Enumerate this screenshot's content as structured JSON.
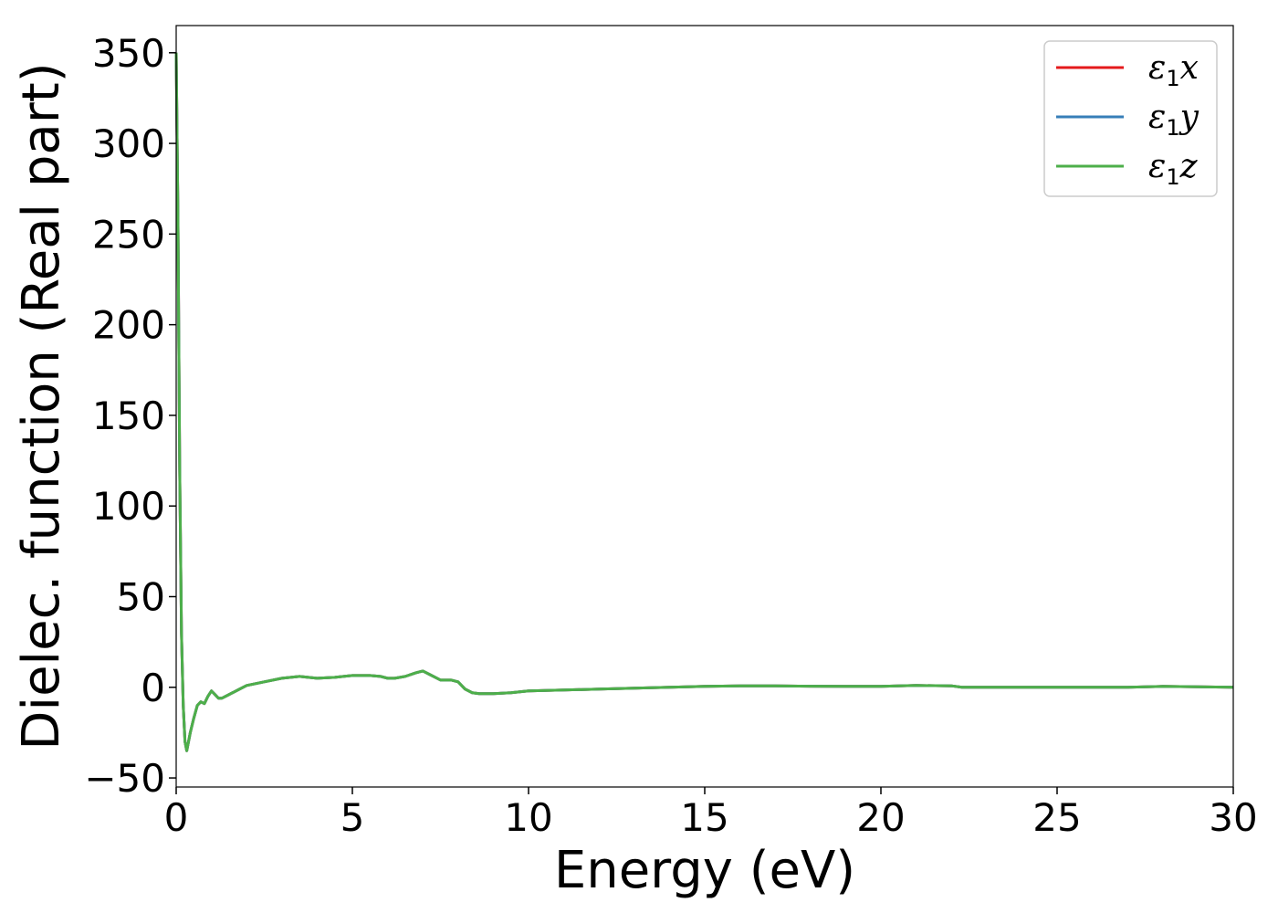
{
  "chart_data": {
    "type": "line",
    "xlabel": "Energy (eV)",
    "ylabel": "Dielec. function (Real part)",
    "xlim": [
      0,
      30
    ],
    "ylim": [
      -55,
      365
    ],
    "xticks": [
      0,
      5,
      10,
      15,
      20,
      25,
      30
    ],
    "yticks": [
      -50,
      0,
      50,
      100,
      150,
      200,
      250,
      300,
      350
    ],
    "xtick_labels": [
      "0",
      "5",
      "10",
      "15",
      "20",
      "25",
      "30"
    ],
    "ytick_labels": [
      "−50",
      "0",
      "50",
      "100",
      "150",
      "200",
      "250",
      "300",
      "350"
    ],
    "grid": false,
    "legend_position": "top-right",
    "series": [
      {
        "name": "ε₁x",
        "legend_base": "ε",
        "legend_sub": "1",
        "legend_var": "x",
        "color": "#e41a1c",
        "x": [
          0,
          0.05,
          0.1,
          0.15,
          0.2,
          0.25,
          0.3,
          0.4,
          0.5,
          0.6,
          0.7,
          0.8,
          0.9,
          1.0,
          1.1,
          1.2,
          1.3,
          1.5,
          1.8,
          2.0,
          2.5,
          3.0,
          3.5,
          4.0,
          4.5,
          5.0,
          5.5,
          5.8,
          6.0,
          6.2,
          6.5,
          6.8,
          7.0,
          7.2,
          7.5,
          7.8,
          8.0,
          8.2,
          8.4,
          8.6,
          9.0,
          9.5,
          10.0,
          11.0,
          12.0,
          13.0,
          14.0,
          15.0,
          16.0,
          17.0,
          18.0,
          19.0,
          20.0,
          21.0,
          22.0,
          22.3,
          25.0,
          27.0,
          28.0,
          30.0
        ],
        "y": [
          350,
          260,
          120,
          30,
          -10,
          -30,
          -35,
          -25,
          -17,
          -10,
          -8,
          -9,
          -5,
          -2,
          -4,
          -6,
          -6,
          -4,
          -1,
          1,
          3,
          5,
          6,
          5,
          5.5,
          6.5,
          6.5,
          6,
          5,
          5,
          6,
          8,
          9,
          7,
          4,
          4,
          3,
          -1,
          -3,
          -3.5,
          -3.5,
          -3,
          -2,
          -1.5,
          -1,
          -0.5,
          0,
          0.5,
          0.8,
          0.8,
          0.6,
          0.5,
          0.5,
          1,
          0.8,
          0,
          0,
          0,
          0.5,
          0
        ]
      },
      {
        "name": "ε₁y",
        "legend_base": "ε",
        "legend_sub": "1",
        "legend_var": "y",
        "color": "#377eb8",
        "x": [
          0,
          0.05,
          0.1,
          0.15,
          0.2,
          0.25,
          0.3,
          0.4,
          0.5,
          0.6,
          0.7,
          0.8,
          0.9,
          1.0,
          1.1,
          1.2,
          1.3,
          1.5,
          1.8,
          2.0,
          2.5,
          3.0,
          3.5,
          4.0,
          4.5,
          5.0,
          5.5,
          5.8,
          6.0,
          6.2,
          6.5,
          6.8,
          7.0,
          7.2,
          7.5,
          7.8,
          8.0,
          8.2,
          8.4,
          8.6,
          9.0,
          9.5,
          10.0,
          11.0,
          12.0,
          13.0,
          14.0,
          15.0,
          16.0,
          17.0,
          18.0,
          19.0,
          20.0,
          21.0,
          22.0,
          22.3,
          25.0,
          27.0,
          28.0,
          30.0
        ],
        "y": [
          350,
          260,
          120,
          30,
          -10,
          -30,
          -35,
          -25,
          -17,
          -10,
          -8,
          -9,
          -5,
          -2,
          -4,
          -6,
          -6,
          -4,
          -1,
          1,
          3,
          5,
          6,
          5,
          5.5,
          6.5,
          6.5,
          6,
          5,
          5,
          6,
          8,
          9,
          7,
          4,
          4,
          3,
          -1,
          -3,
          -3.5,
          -3.5,
          -3,
          -2,
          -1.5,
          -1,
          -0.5,
          0,
          0.5,
          0.8,
          0.8,
          0.6,
          0.5,
          0.5,
          1,
          0.8,
          0,
          0,
          0,
          0.5,
          0
        ]
      },
      {
        "name": "ε₁z",
        "legend_base": "ε",
        "legend_sub": "1",
        "legend_var": "z",
        "color": "#4daf4a",
        "x": [
          0,
          0.05,
          0.1,
          0.15,
          0.2,
          0.25,
          0.3,
          0.4,
          0.5,
          0.6,
          0.7,
          0.8,
          0.9,
          1.0,
          1.1,
          1.2,
          1.3,
          1.5,
          1.8,
          2.0,
          2.5,
          3.0,
          3.5,
          4.0,
          4.5,
          5.0,
          5.5,
          5.8,
          6.0,
          6.2,
          6.5,
          6.8,
          7.0,
          7.2,
          7.5,
          7.8,
          8.0,
          8.2,
          8.4,
          8.6,
          9.0,
          9.5,
          10.0,
          11.0,
          12.0,
          13.0,
          14.0,
          15.0,
          16.0,
          17.0,
          18.0,
          19.0,
          20.0,
          21.0,
          22.0,
          22.3,
          25.0,
          27.0,
          28.0,
          30.0
        ],
        "y": [
          350,
          260,
          120,
          30,
          -10,
          -30,
          -35,
          -25,
          -17,
          -10,
          -8,
          -9,
          -5,
          -2,
          -4,
          -6,
          -6,
          -4,
          -1,
          1,
          3,
          5,
          6,
          5,
          5.5,
          6.5,
          6.5,
          6,
          5,
          5,
          6,
          8,
          9,
          7,
          4,
          4,
          3,
          -1,
          -3,
          -3.5,
          -3.5,
          -3,
          -2,
          -1.5,
          -1,
          -0.5,
          0,
          0.5,
          0.8,
          0.8,
          0.6,
          0.5,
          0.5,
          1,
          0.8,
          0,
          0,
          0,
          0.5,
          0
        ]
      }
    ]
  }
}
